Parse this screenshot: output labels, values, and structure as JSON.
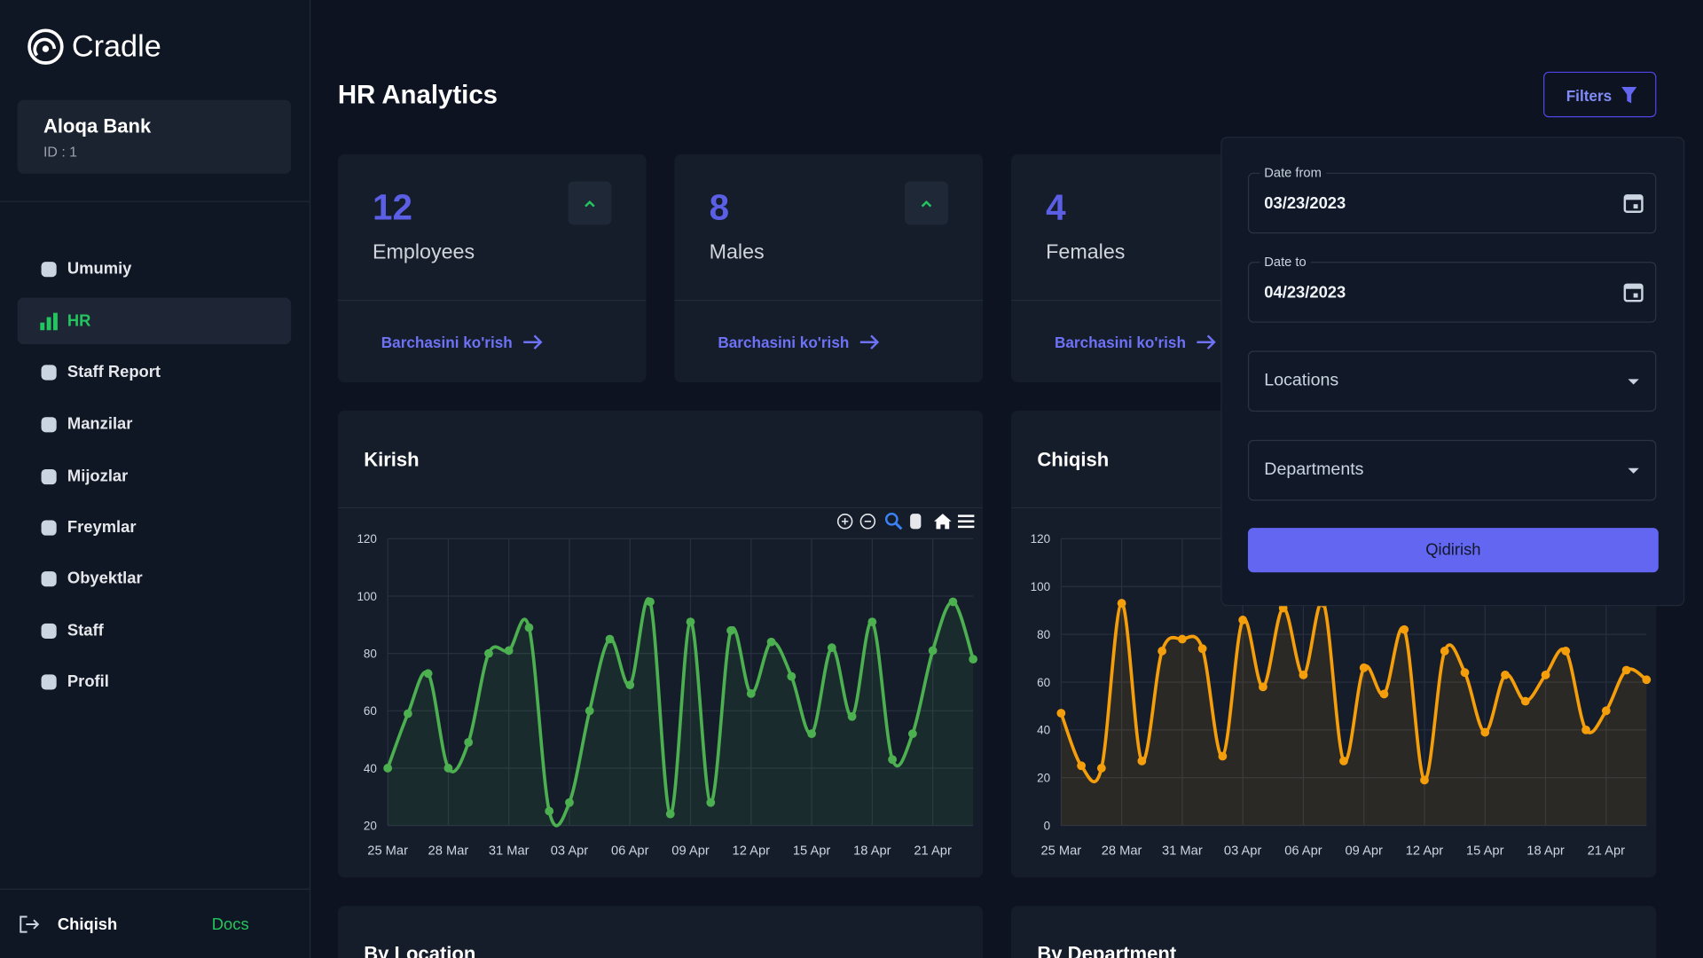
{
  "sidebar": {
    "brand": "Cradle",
    "org": {
      "name": "Aloqa Bank",
      "id": "ID : 1"
    },
    "nav": [
      "Umumiy",
      "HR",
      "Staff Report",
      "Manzilar",
      "Mijozlar",
      "Freymlar",
      "Obyektlar",
      "Staff",
      "Profil"
    ],
    "active": 1,
    "footer": {
      "logout": "Chiqish",
      "docs": "Docs"
    }
  },
  "header": {
    "title": "HR Analytics",
    "filters_button": "Filters"
  },
  "stats": [
    {
      "value": "12",
      "label": "Employees",
      "link": "Barchasini ko'rish"
    },
    {
      "value": "8",
      "label": "Males",
      "link": "Barchasini ko'rish"
    },
    {
      "value": "4",
      "label": "Females",
      "link": "Barchasini ko'rish"
    }
  ],
  "charts": [
    {
      "type": "line",
      "title": "Kirish",
      "color": "#4caf50",
      "categories": [
        "25 Mar",
        null,
        null,
        "28 Mar",
        null,
        null,
        "31 Mar",
        null,
        null,
        "03 Apr",
        null,
        null,
        "06 Apr",
        null,
        null,
        "09 Apr",
        null,
        null,
        "12 Apr",
        null,
        null,
        "15 Apr",
        null,
        null,
        "18 Apr",
        null,
        null,
        "21 Apr",
        null,
        null
      ],
      "values": [
        40,
        59,
        73,
        40,
        49,
        80,
        81,
        89,
        25,
        28,
        60,
        85,
        69,
        98,
        24,
        91,
        28,
        88,
        66,
        84,
        72,
        52,
        82,
        58,
        91,
        43,
        52,
        81,
        98,
        78
      ],
      "ylim": [
        20,
        120
      ],
      "yticks": [
        20,
        40,
        60,
        80,
        100,
        120
      ],
      "grid": true
    },
    {
      "type": "line",
      "title": "Chiqish",
      "color": "#f59e0b",
      "categories": [
        "25 Mar",
        null,
        null,
        "28 Mar",
        null,
        null,
        "31 Mar",
        null,
        null,
        "03 Apr",
        null,
        null,
        "06 Apr",
        null,
        null,
        "09 Apr",
        null,
        null,
        "12 Apr",
        null,
        null,
        "15 Apr",
        null,
        null,
        "18 Apr",
        null,
        null,
        "21 Apr",
        null,
        null
      ],
      "values": [
        47,
        25,
        24,
        93,
        27,
        73,
        78,
        74,
        29,
        86,
        58,
        91,
        63,
        93,
        27,
        66,
        55,
        82,
        19,
        73,
        64,
        39,
        63,
        52,
        63,
        73,
        40,
        48,
        65,
        61
      ],
      "ylim": [
        0,
        120
      ],
      "yticks": [
        0,
        20,
        40,
        60,
        80,
        100,
        120
      ],
      "grid": true
    }
  ],
  "sections": [
    "By Location",
    "By Department"
  ],
  "filters": {
    "date_from": {
      "label": "Date from",
      "value": "03/23/2023"
    },
    "date_to": {
      "label": "Date to",
      "value": "04/23/2023"
    },
    "locations": "Locations",
    "departments": "Departments",
    "submit": "Qidirish"
  }
}
